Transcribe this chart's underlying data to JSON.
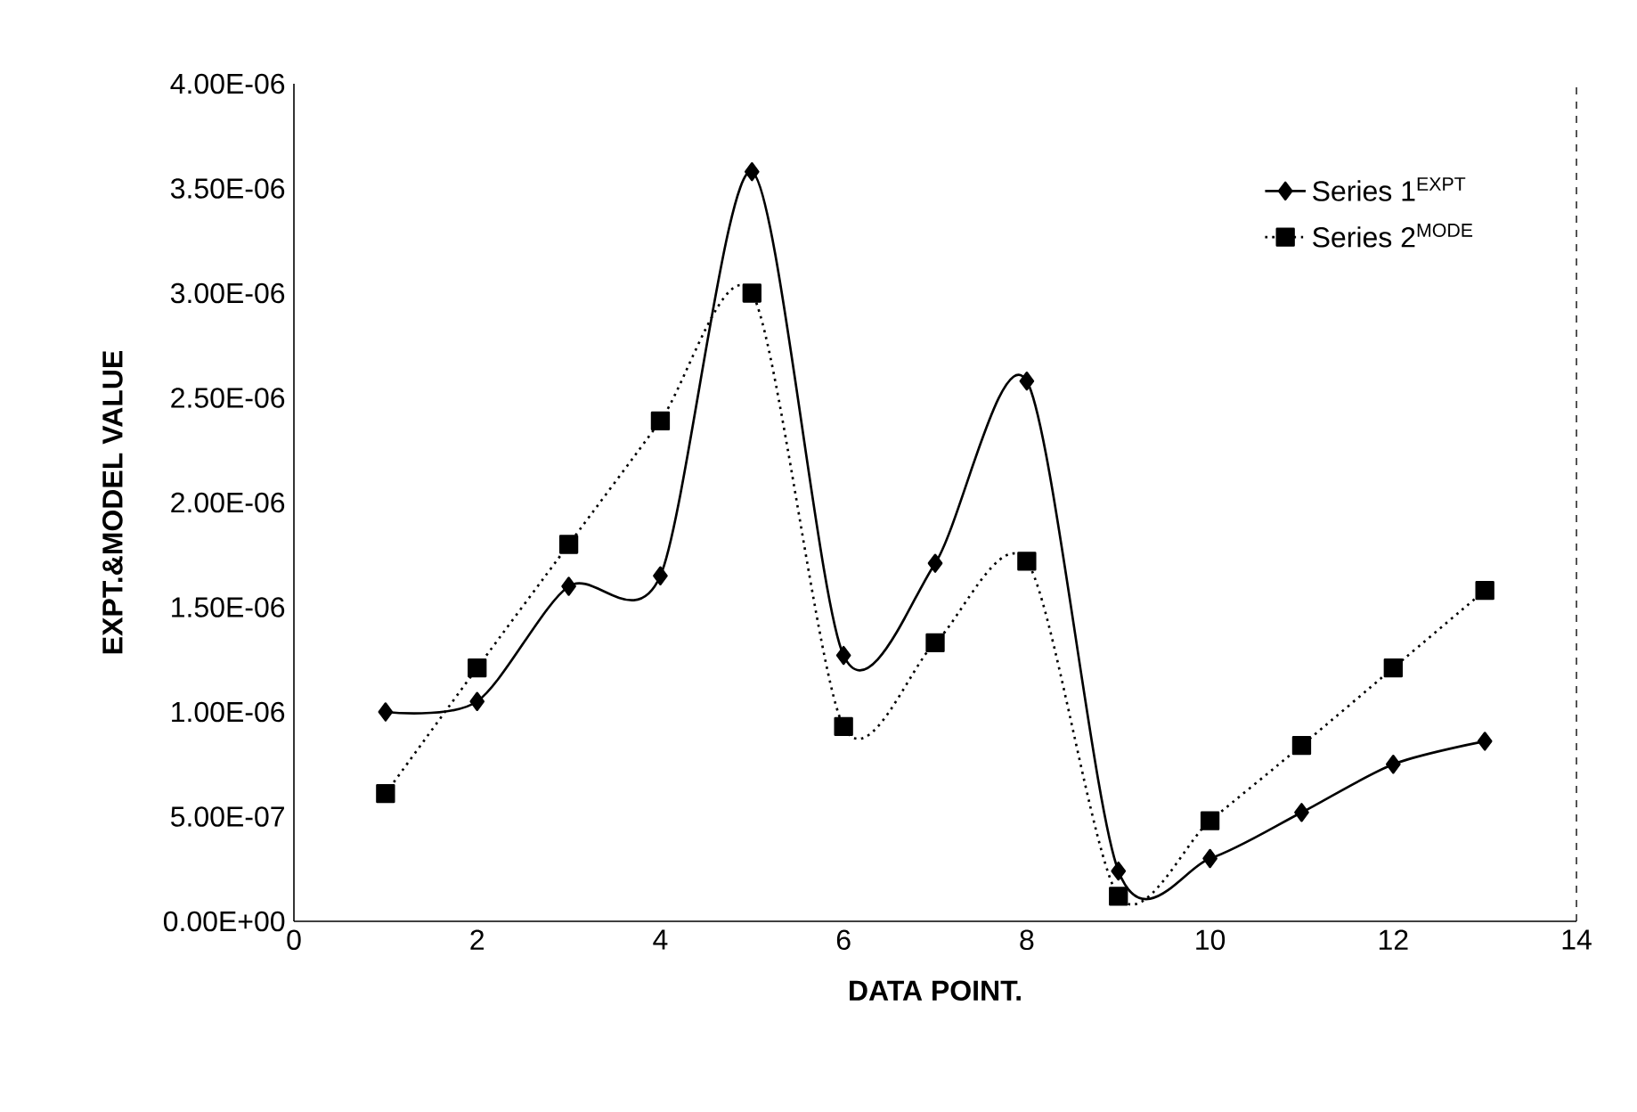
{
  "chart_data": {
    "type": "line",
    "xlabel": "DATA POINT.",
    "ylabel": "EXPT.&MODEL VALUE",
    "x": [
      1,
      2,
      3,
      4,
      5,
      6,
      7,
      8,
      9,
      10,
      11,
      12,
      13
    ],
    "series": [
      {
        "name": "Series 1$^{EXPT}$",
        "color": "#000000",
        "marker": "diamond",
        "line_style": "solid",
        "values": [
          1e-06,
          1.05e-06,
          1.6e-06,
          1.65e-06,
          3.58e-06,
          1.27e-06,
          1.71e-06,
          2.58e-06,
          2.4e-07,
          3e-07,
          5.2e-07,
          7.5e-07,
          8.6e-07
        ]
      },
      {
        "name": "Series 2$^{MODE}$",
        "color": "#000000",
        "marker": "square",
        "line_style": "dotted",
        "values": [
          6.1e-07,
          1.21e-06,
          1.8e-06,
          2.39e-06,
          3e-06,
          9.3e-07,
          1.33e-06,
          1.72e-06,
          1.2e-07,
          4.8e-07,
          8.4e-07,
          1.21e-06,
          1.58e-06
        ]
      }
    ],
    "xlim": [
      0,
      14
    ],
    "xticks": [
      0,
      2,
      4,
      6,
      8,
      10,
      12,
      14
    ],
    "ylim": [
      0,
      4e-06
    ],
    "yticks": [
      {
        "value": 0,
        "label": "0.00E+00"
      },
      {
        "value": 5e-07,
        "label": "5.00E-07"
      },
      {
        "value": 1e-06,
        "label": "1.00E-06"
      },
      {
        "value": 1.5e-06,
        "label": "1.50E-06"
      },
      {
        "value": 2e-06,
        "label": "2.00E-06"
      },
      {
        "value": 2.5e-06,
        "label": "2.50E-06"
      },
      {
        "value": 3e-06,
        "label": "3.00E-06"
      },
      {
        "value": 3.5e-06,
        "label": "3.50E-06"
      },
      {
        "value": 4e-06,
        "label": "4.00E-06"
      }
    ],
    "grid": false,
    "legend": "top right"
  }
}
